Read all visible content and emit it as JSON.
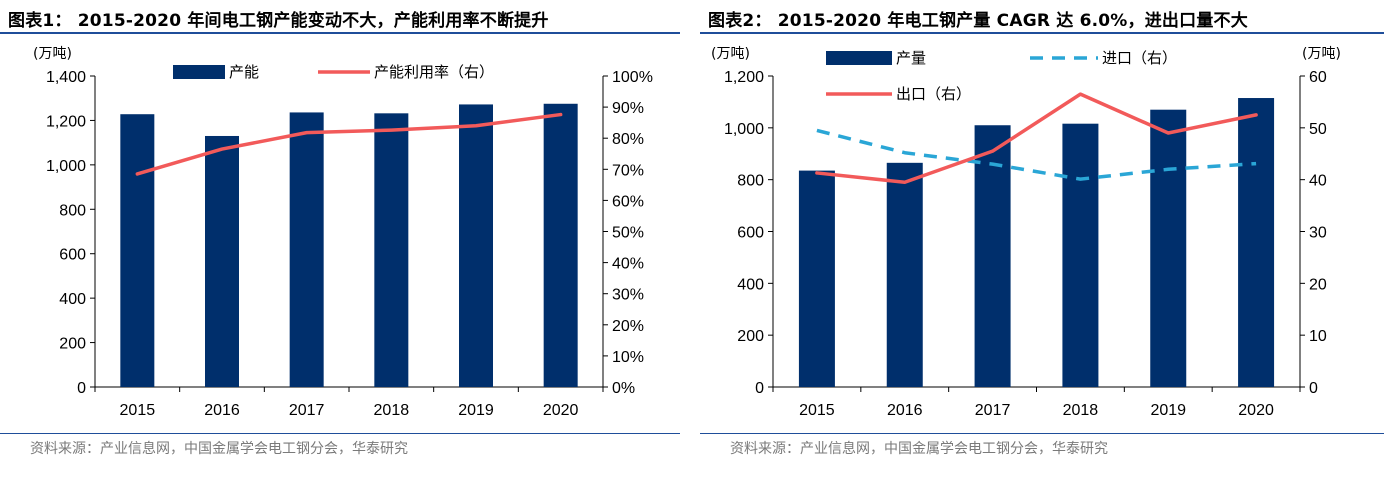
{
  "source_text": "资料来源：产业信息网，中国金属学会电工钢分会，华泰研究",
  "colors": {
    "bar": "#002f6c",
    "red": "#f25a5a",
    "blue": "#2aa6d6",
    "rule": "#1f4e9a"
  },
  "chart_data": [
    {
      "type": "bar",
      "title": "图表1： 2015-2020 年间电工钢产能变动不大，产能利用率不断提升",
      "left_unit": "(万吨)",
      "categories": [
        "2015",
        "2016",
        "2017",
        "2018",
        "2019",
        "2020"
      ],
      "y_left": {
        "min": 0,
        "max": 1400,
        "ticks": [
          "0",
          "200",
          "400",
          "600",
          "800",
          "1,000",
          "1,200",
          "1,400"
        ]
      },
      "y_right": {
        "min": 0,
        "max": 100,
        "ticks": [
          "0%",
          "10%",
          "20%",
          "30%",
          "40%",
          "50%",
          "60%",
          "70%",
          "80%",
          "90%",
          "100%"
        ]
      },
      "series": [
        {
          "name": "产能",
          "kind": "bar",
          "axis": "left",
          "values": [
            1228,
            1130,
            1236,
            1232,
            1272,
            1275
          ]
        },
        {
          "name": "产能利用率（右）",
          "kind": "line",
          "axis": "right",
          "values": [
            68.5,
            76.5,
            81.8,
            82.6,
            84.0,
            87.6
          ]
        }
      ],
      "legend": "top"
    },
    {
      "type": "bar",
      "title": "图表2： 2015-2020 年电工钢产量 CAGR 达 6.0%，进出口量不大",
      "left_unit": "(万吨)",
      "right_unit": "(万吨)",
      "categories": [
        "2015",
        "2016",
        "2017",
        "2018",
        "2019",
        "2020"
      ],
      "y_left": {
        "min": 0,
        "max": 1200,
        "ticks": [
          "0",
          "200",
          "400",
          "600",
          "800",
          "1,000",
          "1,200"
        ]
      },
      "y_right": {
        "min": 0,
        "max": 60,
        "ticks": [
          "0",
          "10",
          "20",
          "30",
          "40",
          "50",
          "60"
        ]
      },
      "series": [
        {
          "name": "产量",
          "kind": "bar",
          "axis": "left",
          "values": [
            835,
            865,
            1010,
            1016,
            1070,
            1115
          ]
        },
        {
          "name": "进口（右）",
          "kind": "dashed-line",
          "axis": "right",
          "values": [
            49.5,
            45.2,
            43.0,
            40.1,
            42.0,
            43.1
          ]
        },
        {
          "name": "出口（右）",
          "kind": "line",
          "axis": "right",
          "values": [
            41.3,
            39.5,
            45.5,
            56.5,
            49.0,
            52.5
          ]
        }
      ],
      "legend": "top"
    }
  ]
}
